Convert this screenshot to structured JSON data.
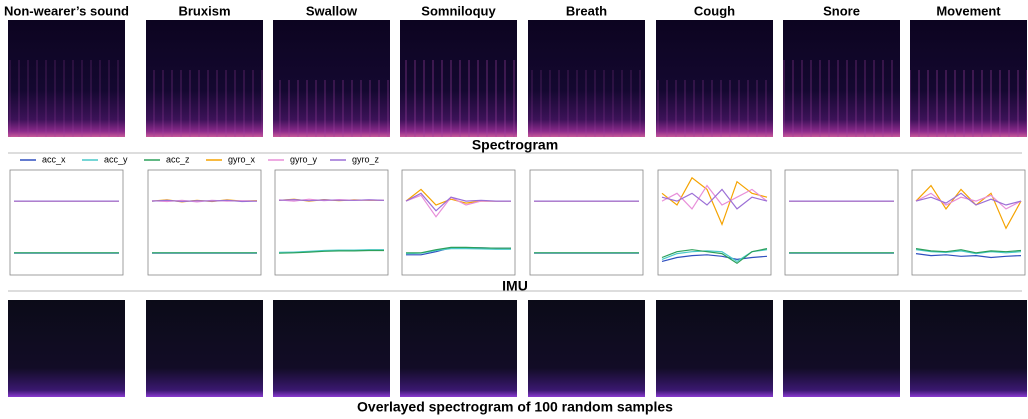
{
  "columns": [
    "Non-wearer’s sound",
    "Bruxism",
    "Swallow",
    "Somniloquy",
    "Breath",
    "Cough",
    "Snore",
    "Movement"
  ],
  "sections": {
    "spectrogram": "Spectrogram",
    "imu": "IMU",
    "overlay": "Overlayed spectrogram of 100 random samples"
  },
  "imu": {
    "ylim": [
      -0.9,
      1.8
    ],
    "series": [
      {
        "name": "acc_x",
        "color": "#2f4fbf"
      },
      {
        "name": "acc_y",
        "color": "#48c9c9"
      },
      {
        "name": "acc_z",
        "color": "#2ca05a"
      },
      {
        "name": "gyro_x",
        "color": "#f5a300"
      },
      {
        "name": "gyro_y",
        "color": "#e88fd9"
      },
      {
        "name": "gyro_z",
        "color": "#9b6fd6"
      }
    ],
    "panels": [
      [
        [
          -0.34,
          -0.34,
          -0.34,
          -0.34,
          -0.34,
          -0.34,
          -0.34,
          -0.34
        ],
        [
          -0.33,
          -0.33,
          -0.33,
          -0.33,
          -0.33,
          -0.33,
          -0.33,
          -0.33
        ],
        [
          -0.33,
          -0.33,
          -0.33,
          -0.33,
          -0.33,
          -0.33,
          -0.33,
          -0.33
        ],
        [
          1.0,
          1.0,
          1.0,
          1.0,
          1.0,
          1.0,
          1.0,
          1.0
        ],
        [
          1.0,
          1.0,
          1.0,
          1.0,
          1.0,
          1.0,
          1.0,
          1.0
        ],
        [
          1.0,
          1.0,
          1.0,
          1.0,
          1.0,
          1.0,
          1.0,
          1.0
        ]
      ],
      [
        [
          -0.34,
          -0.34,
          -0.34,
          -0.34,
          -0.34,
          -0.34,
          -0.34,
          -0.34
        ],
        [
          -0.33,
          -0.33,
          -0.33,
          -0.33,
          -0.33,
          -0.33,
          -0.33,
          -0.33
        ],
        [
          -0.33,
          -0.33,
          -0.33,
          -0.33,
          -0.33,
          -0.33,
          -0.33,
          -0.33
        ],
        [
          1.0,
          1.03,
          0.98,
          1.02,
          0.99,
          1.03,
          1.0,
          1.01
        ],
        [
          1.01,
          0.99,
          1.02,
          0.98,
          1.02,
          1.0,
          1.01,
          1.0
        ],
        [
          1.0,
          1.02,
          0.99,
          1.01,
          1.0,
          1.02,
          0.99,
          1.0
        ]
      ],
      [
        [
          -0.33,
          -0.32,
          -0.3,
          -0.28,
          -0.27,
          -0.27,
          -0.26,
          -0.26
        ],
        [
          -0.32,
          -0.31,
          -0.29,
          -0.27,
          -0.26,
          -0.26,
          -0.25,
          -0.25
        ],
        [
          -0.34,
          -0.33,
          -0.31,
          -0.29,
          -0.28,
          -0.28,
          -0.27,
          -0.27
        ],
        [
          1.02,
          1.05,
          1.0,
          1.04,
          1.01,
          1.03,
          1.02,
          1.02
        ],
        [
          1.03,
          1.0,
          1.05,
          1.01,
          1.04,
          1.02,
          1.03,
          1.02
        ],
        [
          1.02,
          1.04,
          1.01,
          1.03,
          1.02,
          1.02,
          1.03,
          1.02
        ]
      ],
      [
        [
          -0.38,
          -0.38,
          -0.3,
          -0.2,
          -0.2,
          -0.2,
          -0.21,
          -0.21
        ],
        [
          -0.35,
          -0.34,
          -0.27,
          -0.22,
          -0.22,
          -0.23,
          -0.24,
          -0.24
        ],
        [
          -0.33,
          -0.33,
          -0.25,
          -0.19,
          -0.19,
          -0.2,
          -0.21,
          -0.21
        ],
        [
          1.0,
          1.3,
          0.9,
          1.05,
          0.95,
          1.0,
          1.0,
          1.0
        ],
        [
          1.0,
          1.15,
          0.6,
          1.1,
          0.9,
          1.0,
          1.0,
          1.0
        ],
        [
          1.0,
          1.2,
          0.75,
          1.1,
          1.0,
          1.02,
          1.0,
          1.0
        ]
      ],
      [
        [
          -0.34,
          -0.34,
          -0.34,
          -0.34,
          -0.34,
          -0.34,
          -0.34,
          -0.34
        ],
        [
          -0.33,
          -0.33,
          -0.33,
          -0.33,
          -0.33,
          -0.33,
          -0.33,
          -0.33
        ],
        [
          -0.33,
          -0.33,
          -0.33,
          -0.33,
          -0.33,
          -0.33,
          -0.33,
          -0.33
        ],
        [
          1.0,
          1.0,
          1.0,
          1.0,
          1.0,
          1.0,
          1.0,
          1.0
        ],
        [
          1.0,
          1.0,
          1.0,
          1.0,
          1.0,
          1.0,
          1.0,
          1.0
        ],
        [
          1.0,
          1.0,
          1.0,
          1.0,
          1.0,
          1.0,
          1.0,
          1.0
        ]
      ],
      [
        [
          -0.55,
          -0.45,
          -0.4,
          -0.38,
          -0.42,
          -0.5,
          -0.45,
          -0.42
        ],
        [
          -0.5,
          -0.35,
          -0.3,
          -0.28,
          -0.3,
          -0.55,
          -0.3,
          -0.25
        ],
        [
          -0.45,
          -0.3,
          -0.25,
          -0.3,
          -0.35,
          -0.6,
          -0.3,
          -0.22
        ],
        [
          1.2,
          0.9,
          1.6,
          1.3,
          0.4,
          1.5,
          1.2,
          1.1
        ],
        [
          1.0,
          1.2,
          0.8,
          1.4,
          0.9,
          1.1,
          1.3,
          1.0
        ],
        [
          1.1,
          1.0,
          1.2,
          0.9,
          1.3,
          0.8,
          1.1,
          1.0
        ]
      ],
      [
        [
          -0.34,
          -0.34,
          -0.34,
          -0.34,
          -0.34,
          -0.34,
          -0.34,
          -0.34
        ],
        [
          -0.33,
          -0.33,
          -0.33,
          -0.33,
          -0.33,
          -0.33,
          -0.33,
          -0.33
        ],
        [
          -0.33,
          -0.33,
          -0.33,
          -0.33,
          -0.33,
          -0.33,
          -0.33,
          -0.33
        ],
        [
          1.0,
          1.0,
          1.0,
          1.0,
          1.0,
          1.0,
          1.0,
          1.0
        ],
        [
          1.0,
          1.0,
          1.0,
          1.0,
          1.0,
          1.0,
          1.0,
          1.0
        ],
        [
          1.0,
          1.0,
          1.0,
          1.0,
          1.0,
          1.0,
          1.0,
          1.0
        ]
      ],
      [
        [
          -0.35,
          -0.4,
          -0.38,
          -0.42,
          -0.4,
          -0.45,
          -0.42,
          -0.4
        ],
        [
          -0.25,
          -0.3,
          -0.32,
          -0.28,
          -0.35,
          -0.3,
          -0.33,
          -0.3
        ],
        [
          -0.22,
          -0.28,
          -0.3,
          -0.25,
          -0.33,
          -0.28,
          -0.3,
          -0.27
        ],
        [
          1.0,
          1.4,
          0.8,
          1.3,
          0.9,
          1.2,
          0.3,
          1.0
        ],
        [
          1.0,
          1.2,
          0.9,
          1.1,
          1.0,
          1.15,
          0.8,
          1.0
        ],
        [
          1.0,
          1.1,
          0.95,
          1.2,
          0.9,
          1.05,
          0.9,
          1.0
        ]
      ]
    ]
  }
}
